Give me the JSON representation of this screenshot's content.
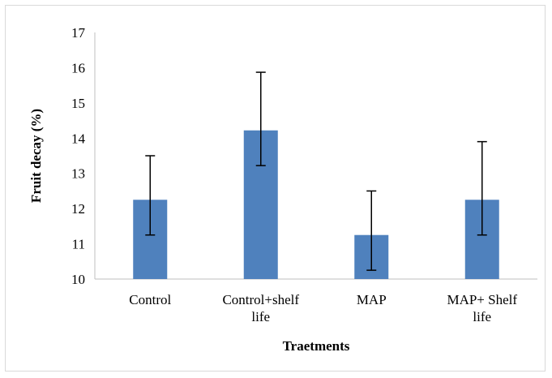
{
  "chart_data": {
    "type": "bar",
    "title": "",
    "xlabel": "Traetments",
    "ylabel": "Fruit decay (%)",
    "categories": [
      [
        "Control"
      ],
      [
        "Control+shelf",
        "life"
      ],
      [
        "MAP"
      ],
      [
        "MAP+ Shelf",
        "life"
      ]
    ],
    "values": [
      12.25,
      14.22,
      11.25,
      12.25
    ],
    "error_low": [
      11.25,
      13.22,
      10.25,
      11.25
    ],
    "error_high": [
      13.5,
      15.87,
      12.5,
      13.9
    ],
    "ylim": [
      10,
      17
    ],
    "yticks": [
      10,
      11,
      12,
      13,
      14,
      15,
      16,
      17
    ],
    "grid": false,
    "legend": "none",
    "bar_color": "#4f81bd",
    "error_bar_color": "#000000"
  }
}
